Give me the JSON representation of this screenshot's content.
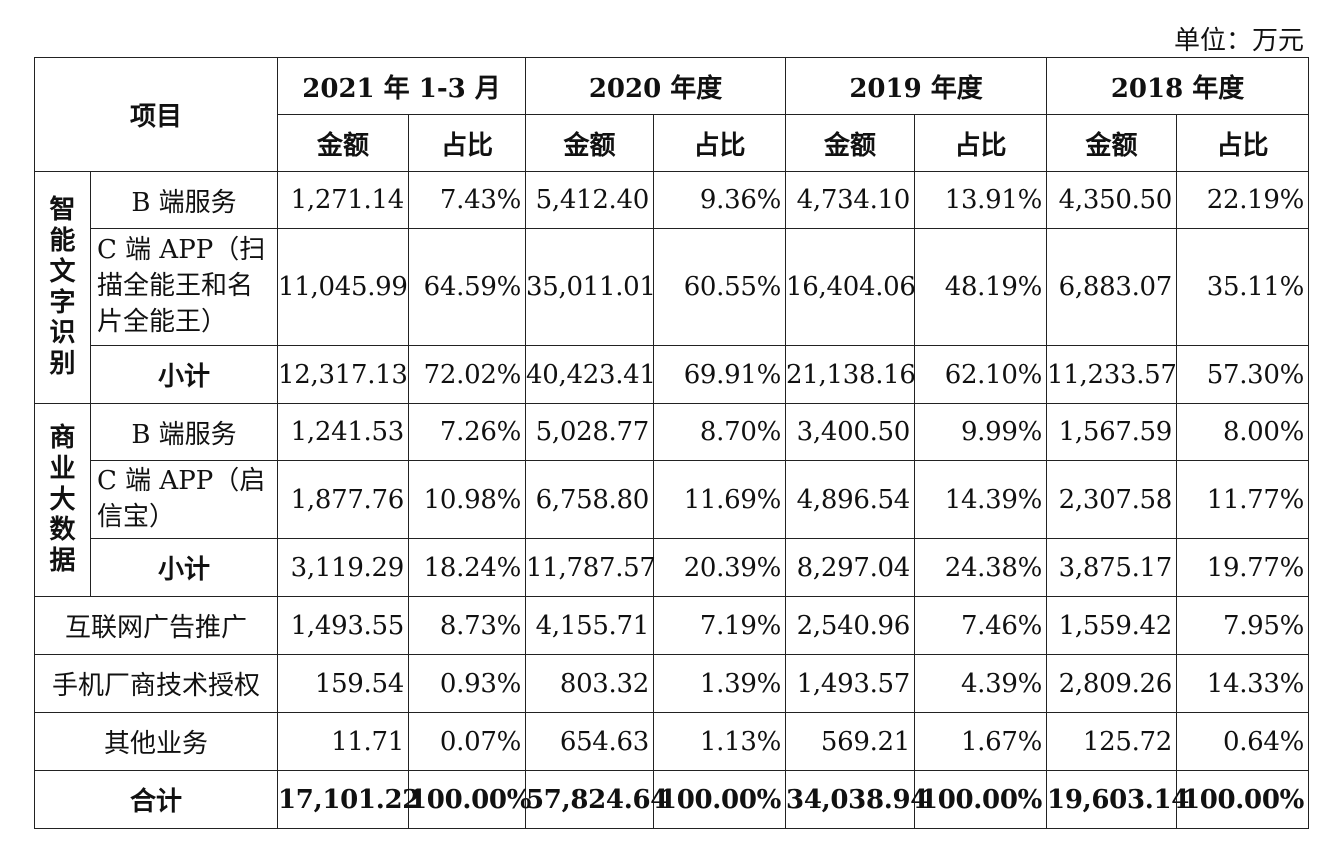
{
  "unit_label": "单位：万元",
  "header": {
    "item_col": "项目",
    "periods": [
      "2021 年 1-3 月",
      "2020 年度",
      "2019 年度",
      "2018 年度"
    ],
    "amount": "金额",
    "ratio": "占比"
  },
  "groups": [
    {
      "label": "智能文字识别",
      "rows": [
        {
          "name": "B 端服务",
          "values": [
            "1,271.14",
            "7.43%",
            "5,412.40",
            "9.36%",
            "4,734.10",
            "13.91%",
            "4,350.50",
            "22.19%"
          ]
        },
        {
          "name": "C 端 APP（扫描全能王和名片全能王）",
          "values": [
            "11,045.99",
            "64.59%",
            "35,011.01",
            "60.55%",
            "16,404.06",
            "48.19%",
            "6,883.07",
            "35.11%"
          ]
        },
        {
          "name": "小计",
          "values": [
            "12,317.13",
            "72.02%",
            "40,423.41",
            "69.91%",
            "21,138.16",
            "62.10%",
            "11,233.57",
            "57.30%"
          ]
        }
      ]
    },
    {
      "label": "商业大数据",
      "rows": [
        {
          "name": "B 端服务",
          "values": [
            "1,241.53",
            "7.26%",
            "5,028.77",
            "8.70%",
            "3,400.50",
            "9.99%",
            "1,567.59",
            "8.00%"
          ]
        },
        {
          "name": "C 端 APP（启信宝）",
          "values": [
            "1,877.76",
            "10.98%",
            "6,758.80",
            "11.69%",
            "4,896.54",
            "14.39%",
            "2,307.58",
            "11.77%"
          ]
        },
        {
          "name": "小计",
          "values": [
            "3,119.29",
            "18.24%",
            "11,787.57",
            "20.39%",
            "8,297.04",
            "24.38%",
            "3,875.17",
            "19.77%"
          ]
        }
      ]
    }
  ],
  "other_rows": [
    {
      "name": "互联网广告推广",
      "values": [
        "1,493.55",
        "8.73%",
        "4,155.71",
        "7.19%",
        "2,540.96",
        "7.46%",
        "1,559.42",
        "7.95%"
      ]
    },
    {
      "name": "手机厂商技术授权",
      "values": [
        "159.54",
        "0.93%",
        "803.32",
        "1.39%",
        "1,493.57",
        "4.39%",
        "2,809.26",
        "14.33%"
      ]
    },
    {
      "name": "其他业务",
      "values": [
        "11.71",
        "0.07%",
        "654.63",
        "1.13%",
        "569.21",
        "1.67%",
        "125.72",
        "0.64%"
      ]
    }
  ],
  "total": {
    "name": "合计",
    "values": [
      "17,101.22",
      "100.00%",
      "57,824.64",
      "100.00%",
      "34,038.94",
      "100.00%",
      "19,603.14",
      "100.00%"
    ]
  }
}
